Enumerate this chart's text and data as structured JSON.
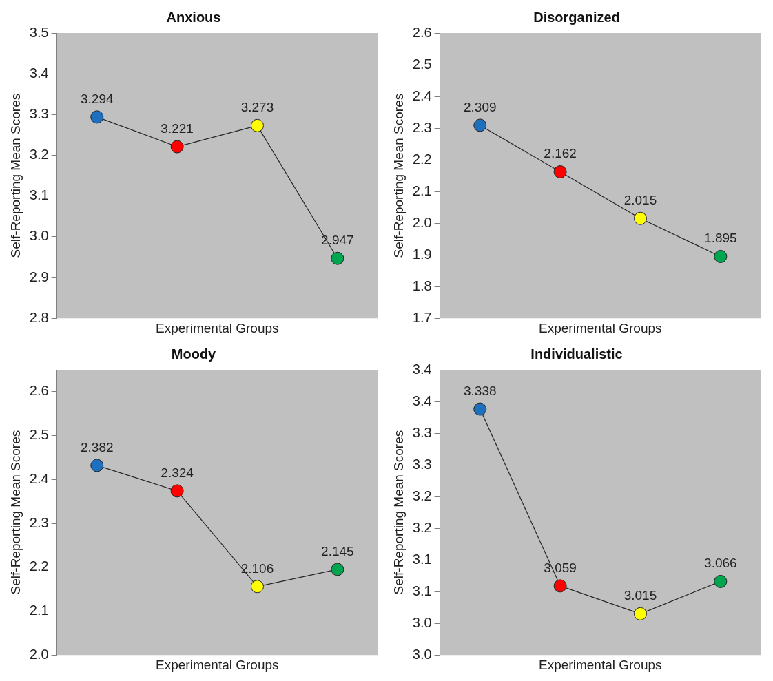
{
  "chart_data": [
    {
      "type": "line",
      "title": "Anxious",
      "xlabel": "Experimental Groups",
      "ylabel": "Self-Reporting Mean Scores",
      "categories": [
        null,
        null,
        null,
        null
      ],
      "series": [
        {
          "color": "#262626",
          "colors": [
            "#1f6fbf",
            "#ff0000",
            "#ffff00",
            "#00a550"
          ],
          "values": [
            3.294,
            3.221,
            3.273,
            2.947
          ]
        }
      ],
      "ylim": [
        2.8,
        3.5
      ],
      "yticks": [
        2.8,
        2.9,
        {
          "value": 3.0,
          "label": "3.0"
        },
        3.1,
        3.2,
        3.3,
        3.4,
        3.5
      ],
      "grid": false,
      "legend": false,
      "marker": "circle",
      "data_labels": true,
      "tick_labels": "y"
    },
    {
      "type": "line",
      "title": "Disorganized",
      "xlabel": "Experimental Groups",
      "ylabel": "Self-Reporting Mean Scores",
      "categories": [
        null,
        null,
        null,
        null
      ],
      "series": [
        {
          "color": "#262626",
          "colors": [
            "#1f6fbf",
            "#ff0000",
            "#ffff00",
            "#00a550"
          ],
          "values": [
            2.309,
            2.162,
            2.015,
            1.895
          ]
        }
      ],
      "ylim": [
        1.7,
        2.6
      ],
      "yticks": [
        1.7,
        1.8,
        1.9,
        {
          "value": 2.0,
          "label": "2.0"
        },
        2.1,
        2.2,
        2.3,
        2.4,
        2.5,
        2.6
      ],
      "grid": false,
      "legend": false,
      "marker": "circle",
      "data_labels": true,
      "tick_labels": "y"
    },
    {
      "type": "line",
      "title": "Moody",
      "xlabel": "Experimental Groups",
      "ylabel": "Self-Reporting Mean Scores",
      "categories": [
        null,
        null,
        null,
        null
      ],
      "series": [
        {
          "color": "#262626",
          "colors": [
            "#1f6fbf",
            "#ff0000",
            "#ffff00",
            "#00a550"
          ],
          "values": [
            2.382,
            2.324,
            2.106,
            2.145
          ]
        }
      ],
      "ylim": [
        1.95,
        2.6
      ],
      "yticks": [
        {
          "value": 1.95,
          "label": "2.0"
        },
        {
          "value": 2.05,
          "label": "2.1"
        },
        {
          "value": 2.15,
          "label": "2.2"
        },
        {
          "value": 2.25,
          "label": "2.3"
        },
        {
          "value": 2.35,
          "label": "2.4"
        },
        {
          "value": 2.45,
          "label": "2.5"
        },
        {
          "value": 2.55,
          "label": "2.6"
        }
      ],
      "grid": false,
      "legend": false,
      "marker": "circle",
      "data_labels": true,
      "tick_labels": "y"
    },
    {
      "type": "line",
      "title": "Individualistic",
      "xlabel": "Experimental Groups",
      "ylabel": "Self-Reporting Mean Scores",
      "categories": [
        null,
        null,
        null,
        null
      ],
      "series": [
        {
          "color": "#262626",
          "colors": [
            "#1f6fbf",
            "#ff0000",
            "#ffff00",
            "#00a550"
          ],
          "values": [
            3.338,
            3.059,
            3.015,
            3.066
          ]
        }
      ],
      "ylim": [
        2.95,
        3.4
      ],
      "yticks": [
        {
          "value": 2.95,
          "label": "3.0"
        },
        {
          "value": 3.0,
          "label": "3.0"
        },
        {
          "value": 3.05,
          "label": "3.1"
        },
        {
          "value": 3.1,
          "label": "3.1"
        },
        {
          "value": 3.15,
          "label": "3.2"
        },
        {
          "value": 3.2,
          "label": "3.2"
        },
        {
          "value": 3.25,
          "label": "3.3"
        },
        {
          "value": 3.3,
          "label": "3.3"
        },
        {
          "value": 3.35,
          "label": "3.4"
        },
        {
          "value": 3.4,
          "label": "3.4"
        }
      ],
      "grid": false,
      "legend": false,
      "marker": "circle",
      "data_labels": true,
      "tick_labels": "y"
    }
  ]
}
